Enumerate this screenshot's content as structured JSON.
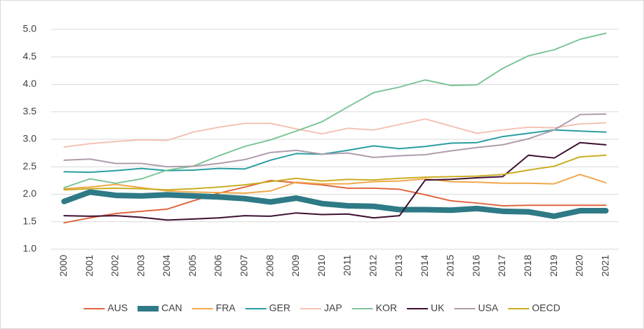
{
  "chart_data": {
    "type": "line",
    "categories": [
      "2000",
      "2001",
      "2002",
      "2003",
      "2004",
      "2005",
      "2006",
      "2007",
      "2008",
      "2009",
      "2010",
      "2011",
      "2012",
      "2013",
      "2014",
      "2015",
      "2016",
      "2017",
      "2018",
      "2019",
      "2020",
      "2021"
    ],
    "series": [
      {
        "name": "AUS",
        "color": "#e0663f",
        "line_width": 2,
        "values": [
          1.48,
          1.57,
          1.65,
          1.69,
          1.73,
          1.88,
          2.02,
          2.13,
          2.25,
          2.21,
          2.17,
          2.11,
          2.11,
          2.09,
          1.99,
          1.88,
          1.84,
          1.79,
          1.8,
          1.8,
          1.8,
          1.8
        ]
      },
      {
        "name": "CAN",
        "color": "#2e7a86",
        "line_width": 8,
        "values": [
          1.87,
          2.04,
          1.98,
          1.97,
          1.99,
          1.97,
          1.95,
          1.92,
          1.86,
          1.93,
          1.83,
          1.79,
          1.78,
          1.72,
          1.72,
          1.71,
          1.74,
          1.69,
          1.68,
          1.6,
          1.7,
          1.7
        ]
      },
      {
        "name": "FRA",
        "color": "#f0a84a",
        "line_width": 2,
        "values": [
          2.1,
          2.13,
          2.18,
          2.12,
          2.06,
          2.04,
          2.03,
          2.02,
          2.06,
          2.22,
          2.19,
          2.19,
          2.23,
          2.24,
          2.28,
          2.23,
          2.22,
          2.2,
          2.2,
          2.19,
          2.36,
          2.21
        ]
      },
      {
        "name": "GER",
        "color": "#2a9da0",
        "line_width": 2,
        "values": [
          2.41,
          2.4,
          2.43,
          2.47,
          2.43,
          2.44,
          2.47,
          2.46,
          2.62,
          2.74,
          2.73,
          2.8,
          2.88,
          2.83,
          2.87,
          2.93,
          2.94,
          3.05,
          3.11,
          3.17,
          3.15,
          3.13
        ]
      },
      {
        "name": "JAP",
        "color": "#f4c2b4",
        "line_width": 2,
        "values": [
          2.86,
          2.92,
          2.96,
          2.99,
          2.98,
          3.13,
          3.22,
          3.29,
          3.29,
          3.19,
          3.1,
          3.2,
          3.17,
          3.27,
          3.37,
          3.24,
          3.11,
          3.17,
          3.22,
          3.21,
          3.28,
          3.3
        ]
      },
      {
        "name": "KOR",
        "color": "#7dc598",
        "line_width": 2,
        "values": [
          2.12,
          2.28,
          2.2,
          2.28,
          2.44,
          2.51,
          2.7,
          2.87,
          2.99,
          3.15,
          3.32,
          3.59,
          3.85,
          3.95,
          4.08,
          3.98,
          3.99,
          4.29,
          4.52,
          4.63,
          4.82,
          4.93
        ]
      },
      {
        "name": "UK",
        "color": "#3d1031",
        "line_width": 2,
        "values": [
          1.61,
          1.6,
          1.61,
          1.58,
          1.53,
          1.55,
          1.57,
          1.61,
          1.6,
          1.66,
          1.63,
          1.64,
          1.57,
          1.61,
          2.26,
          2.27,
          2.3,
          2.32,
          2.71,
          2.66,
          2.94,
          2.9
        ]
      },
      {
        "name": "USA",
        "color": "#b09cac",
        "line_width": 2,
        "values": [
          2.62,
          2.64,
          2.56,
          2.56,
          2.5,
          2.51,
          2.56,
          2.63,
          2.76,
          2.8,
          2.73,
          2.75,
          2.67,
          2.7,
          2.72,
          2.79,
          2.85,
          2.9,
          3.01,
          3.17,
          3.45,
          3.46
        ]
      },
      {
        "name": "OECD",
        "color": "#c9ad24",
        "line_width": 2,
        "values": [
          2.08,
          2.1,
          2.11,
          2.1,
          2.08,
          2.1,
          2.13,
          2.17,
          2.23,
          2.29,
          2.24,
          2.27,
          2.26,
          2.29,
          2.31,
          2.32,
          2.33,
          2.36,
          2.44,
          2.51,
          2.68,
          2.71
        ]
      }
    ],
    "ylim": [
      1,
      5
    ],
    "yticks": [
      {
        "value": 1,
        "label": "1.0"
      },
      1.5,
      {
        "value": 2,
        "label": "2.0"
      },
      2.5,
      {
        "value": 3,
        "label": "3.0"
      },
      3.5,
      {
        "value": 4,
        "label": "4.0"
      },
      4.5,
      {
        "value": 5,
        "label": "5.0"
      }
    ],
    "grid": true,
    "legend": "bottom"
  }
}
